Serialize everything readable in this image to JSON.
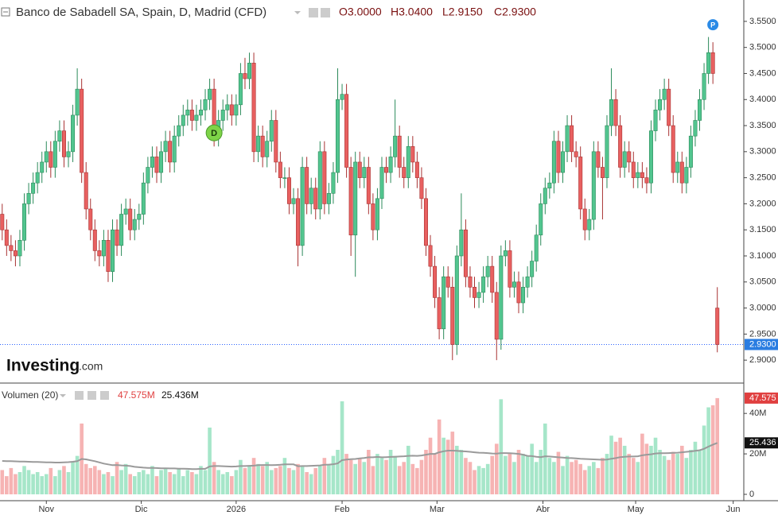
{
  "chart_data": {
    "type": "candlestick",
    "title": "Banco de Sabadell SA, Spain, D, Madrid (CFD)",
    "header_ohlc": [
      "O3.0000",
      "H3.0400",
      "L2.9150",
      "C2.9300"
    ],
    "logo": [
      "Investing",
      ".com"
    ],
    "up_color": "#52c58f",
    "down_color": "#e86060",
    "xlim": [
      -0.5,
      168
    ],
    "xticks": [
      {
        "value": 10,
        "label": "Nov"
      },
      {
        "value": 31.5,
        "label": "Dic"
      },
      {
        "value": 53,
        "label": "2026"
      },
      {
        "value": 77,
        "label": "Feb"
      },
      {
        "value": 98.5,
        "label": "Mar"
      },
      {
        "value": 122.5,
        "label": "Abr"
      },
      {
        "value": 143.5,
        "label": "May"
      },
      {
        "value": 165.6,
        "label": "Jun"
      }
    ],
    "ylim": [
      2.856,
      3.591
    ],
    "yticks": [
      {
        "value": 2.9,
        "label": "2.9000"
      },
      {
        "value": 2.95,
        "label": "2.9500"
      },
      {
        "value": 3.0,
        "label": "3.0000"
      },
      {
        "value": 3.05,
        "label": "3.0500"
      },
      {
        "value": 3.1,
        "label": "3.1000"
      },
      {
        "value": 3.15,
        "label": "3.1500"
      },
      {
        "value": 3.2,
        "label": "3.2000"
      },
      {
        "value": 3.25,
        "label": "3.2500"
      },
      {
        "value": 3.3,
        "label": "3.3000"
      },
      {
        "value": 3.35,
        "label": "3.3500"
      },
      {
        "value": 3.4,
        "label": "3.4000"
      },
      {
        "value": 3.45,
        "label": "3.4500"
      },
      {
        "value": 3.5,
        "label": "3.5000"
      },
      {
        "value": 3.55,
        "label": "3.5500"
      }
    ],
    "current_price": {
      "value": 2.93,
      "label": "2.9300"
    },
    "events": [
      {
        "label": "D",
        "index": 48
      },
      {
        "label": "P",
        "index": 161
      }
    ],
    "ohlc": [
      [
        3.18,
        3.2,
        3.13,
        3.15
      ],
      [
        3.15,
        3.17,
        3.1,
        3.12
      ],
      [
        3.12,
        3.14,
        3.09,
        3.11
      ],
      [
        3.11,
        3.13,
        3.08,
        3.1
      ],
      [
        3.1,
        3.15,
        3.08,
        3.13
      ],
      [
        3.13,
        3.22,
        3.11,
        3.2
      ],
      [
        3.2,
        3.24,
        3.18,
        3.22
      ],
      [
        3.22,
        3.26,
        3.2,
        3.24
      ],
      [
        3.24,
        3.28,
        3.22,
        3.26
      ],
      [
        3.26,
        3.3,
        3.24,
        3.28
      ],
      [
        3.28,
        3.32,
        3.26,
        3.3
      ],
      [
        3.3,
        3.32,
        3.25,
        3.27
      ],
      [
        3.27,
        3.34,
        3.25,
        3.32
      ],
      [
        3.32,
        3.36,
        3.3,
        3.34
      ],
      [
        3.34,
        3.36,
        3.27,
        3.29
      ],
      [
        3.29,
        3.32,
        3.27,
        3.3
      ],
      [
        3.3,
        3.39,
        3.28,
        3.37
      ],
      [
        3.37,
        3.46,
        3.35,
        3.42
      ],
      [
        3.42,
        3.44,
        3.24,
        3.26
      ],
      [
        3.26,
        3.28,
        3.17,
        3.19
      ],
      [
        3.19,
        3.21,
        3.13,
        3.15
      ],
      [
        3.15,
        3.17,
        3.09,
        3.11
      ],
      [
        3.11,
        3.13,
        3.08,
        3.1
      ],
      [
        3.1,
        3.15,
        3.08,
        3.13
      ],
      [
        3.13,
        3.15,
        3.05,
        3.07
      ],
      [
        3.07,
        3.17,
        3.05,
        3.15
      ],
      [
        3.15,
        3.17,
        3.1,
        3.12
      ],
      [
        3.12,
        3.2,
        3.1,
        3.18
      ],
      [
        3.18,
        3.21,
        3.16,
        3.19
      ],
      [
        3.19,
        3.21,
        3.13,
        3.15
      ],
      [
        3.15,
        3.19,
        3.13,
        3.17
      ],
      [
        3.17,
        3.2,
        3.15,
        3.18
      ],
      [
        3.18,
        3.26,
        3.16,
        3.24
      ],
      [
        3.24,
        3.29,
        3.22,
        3.27
      ],
      [
        3.27,
        3.31,
        3.25,
        3.29
      ],
      [
        3.29,
        3.31,
        3.24,
        3.26
      ],
      [
        3.26,
        3.32,
        3.24,
        3.3
      ],
      [
        3.3,
        3.34,
        3.28,
        3.32
      ],
      [
        3.32,
        3.34,
        3.26,
        3.28
      ],
      [
        3.28,
        3.35,
        3.26,
        3.33
      ],
      [
        3.33,
        3.37,
        3.31,
        3.35
      ],
      [
        3.35,
        3.39,
        3.33,
        3.37
      ],
      [
        3.37,
        3.4,
        3.35,
        3.38
      ],
      [
        3.38,
        3.4,
        3.34,
        3.36
      ],
      [
        3.36,
        3.39,
        3.34,
        3.37
      ],
      [
        3.37,
        3.4,
        3.35,
        3.38
      ],
      [
        3.38,
        3.42,
        3.36,
        3.4
      ],
      [
        3.4,
        3.44,
        3.38,
        3.42
      ],
      [
        3.42,
        3.44,
        3.31,
        3.33
      ],
      [
        3.33,
        3.38,
        3.31,
        3.36
      ],
      [
        3.36,
        3.4,
        3.34,
        3.38
      ],
      [
        3.38,
        3.41,
        3.36,
        3.39
      ],
      [
        3.39,
        3.41,
        3.35,
        3.37
      ],
      [
        3.37,
        3.41,
        3.35,
        3.39
      ],
      [
        3.39,
        3.47,
        3.37,
        3.45
      ],
      [
        3.45,
        3.48,
        3.42,
        3.44
      ],
      [
        3.44,
        3.49,
        3.42,
        3.47
      ],
      [
        3.47,
        3.49,
        3.28,
        3.3
      ],
      [
        3.3,
        3.35,
        3.28,
        3.33
      ],
      [
        3.33,
        3.35,
        3.27,
        3.29
      ],
      [
        3.29,
        3.34,
        3.27,
        3.32
      ],
      [
        3.32,
        3.38,
        3.3,
        3.36
      ],
      [
        3.36,
        3.38,
        3.26,
        3.28
      ],
      [
        3.28,
        3.3,
        3.23,
        3.25
      ],
      [
        3.25,
        3.27,
        3.23,
        3.25
      ],
      [
        3.25,
        3.27,
        3.18,
        3.2
      ],
      [
        3.2,
        3.23,
        3.18,
        3.21
      ],
      [
        3.21,
        3.23,
        3.08,
        3.12
      ],
      [
        3.12,
        3.29,
        3.1,
        3.27
      ],
      [
        3.27,
        3.29,
        3.18,
        3.2
      ],
      [
        3.2,
        3.25,
        3.18,
        3.23
      ],
      [
        3.23,
        3.25,
        3.17,
        3.19
      ],
      [
        3.19,
        3.32,
        3.17,
        3.3
      ],
      [
        3.3,
        3.32,
        3.18,
        3.2
      ],
      [
        3.2,
        3.24,
        3.18,
        3.22
      ],
      [
        3.22,
        3.28,
        3.2,
        3.26
      ],
      [
        3.26,
        3.46,
        3.24,
        3.4
      ],
      [
        3.4,
        3.43,
        3.38,
        3.41
      ],
      [
        3.41,
        3.43,
        3.25,
        3.27
      ],
      [
        3.27,
        3.29,
        3.1,
        3.14
      ],
      [
        3.14,
        3.3,
        3.06,
        3.28
      ],
      [
        3.28,
        3.3,
        3.23,
        3.25
      ],
      [
        3.25,
        3.29,
        3.23,
        3.27
      ],
      [
        3.27,
        3.29,
        3.18,
        3.2
      ],
      [
        3.2,
        3.22,
        3.13,
        3.15
      ],
      [
        3.15,
        3.23,
        3.13,
        3.21
      ],
      [
        3.21,
        3.29,
        3.19,
        3.27
      ],
      [
        3.27,
        3.29,
        3.24,
        3.26
      ],
      [
        3.26,
        3.31,
        3.24,
        3.29
      ],
      [
        3.29,
        3.4,
        3.27,
        3.33
      ],
      [
        3.33,
        3.35,
        3.25,
        3.27
      ],
      [
        3.27,
        3.29,
        3.23,
        3.25
      ],
      [
        3.25,
        3.33,
        3.23,
        3.31
      ],
      [
        3.31,
        3.33,
        3.26,
        3.28
      ],
      [
        3.28,
        3.3,
        3.23,
        3.25
      ],
      [
        3.25,
        3.27,
        3.19,
        3.21
      ],
      [
        3.21,
        3.23,
        3.1,
        3.12
      ],
      [
        3.12,
        3.14,
        3.06,
        3.08
      ],
      [
        3.08,
        3.1,
        3.0,
        3.02
      ],
      [
        3.02,
        3.04,
        2.94,
        2.96
      ],
      [
        2.96,
        3.08,
        2.94,
        3.06
      ],
      [
        3.06,
        3.08,
        3.02,
        3.04
      ],
      [
        3.04,
        3.06,
        2.9,
        2.93
      ],
      [
        2.93,
        3.12,
        2.91,
        3.1
      ],
      [
        3.1,
        3.22,
        3.08,
        3.15
      ],
      [
        3.15,
        3.17,
        3.04,
        3.06
      ],
      [
        3.06,
        3.08,
        3.02,
        3.04
      ],
      [
        3.04,
        3.06,
        3.0,
        3.02
      ],
      [
        3.02,
        3.05,
        3.0,
        3.03
      ],
      [
        3.03,
        3.08,
        3.01,
        3.06
      ],
      [
        3.06,
        3.1,
        3.04,
        3.08
      ],
      [
        3.08,
        3.1,
        3.01,
        3.03
      ],
      [
        3.03,
        3.05,
        2.9,
        2.94
      ],
      [
        2.94,
        3.12,
        2.92,
        3.1
      ],
      [
        3.1,
        3.13,
        3.08,
        3.11
      ],
      [
        3.11,
        3.13,
        3.02,
        3.04
      ],
      [
        3.04,
        3.07,
        3.02,
        3.05
      ],
      [
        3.05,
        3.07,
        2.99,
        3.01
      ],
      [
        3.01,
        3.06,
        2.99,
        3.04
      ],
      [
        3.04,
        3.08,
        3.02,
        3.06
      ],
      [
        3.06,
        3.11,
        3.04,
        3.09
      ],
      [
        3.09,
        3.16,
        3.07,
        3.14
      ],
      [
        3.14,
        3.22,
        3.12,
        3.2
      ],
      [
        3.2,
        3.25,
        3.18,
        3.23
      ],
      [
        3.23,
        3.26,
        3.21,
        3.24
      ],
      [
        3.24,
        3.34,
        3.22,
        3.32
      ],
      [
        3.32,
        3.34,
        3.24,
        3.26
      ],
      [
        3.26,
        3.32,
        3.24,
        3.3
      ],
      [
        3.3,
        3.37,
        3.28,
        3.35
      ],
      [
        3.35,
        3.37,
        3.28,
        3.3
      ],
      [
        3.3,
        3.32,
        3.27,
        3.29
      ],
      [
        3.29,
        3.31,
        3.17,
        3.19
      ],
      [
        3.19,
        3.21,
        3.13,
        3.15
      ],
      [
        3.15,
        3.19,
        3.13,
        3.17
      ],
      [
        3.17,
        3.32,
        3.15,
        3.3
      ],
      [
        3.3,
        3.32,
        3.25,
        3.27
      ],
      [
        3.27,
        3.29,
        3.17,
        3.25
      ],
      [
        3.25,
        3.37,
        3.23,
        3.35
      ],
      [
        3.35,
        3.46,
        3.33,
        3.4
      ],
      [
        3.4,
        3.42,
        3.33,
        3.35
      ],
      [
        3.35,
        3.37,
        3.25,
        3.27
      ],
      [
        3.27,
        3.32,
        3.25,
        3.3
      ],
      [
        3.3,
        3.32,
        3.26,
        3.28
      ],
      [
        3.28,
        3.3,
        3.23,
        3.25
      ],
      [
        3.25,
        3.28,
        3.23,
        3.26
      ],
      [
        3.26,
        3.28,
        3.23,
        3.25
      ],
      [
        3.25,
        3.27,
        3.22,
        3.24
      ],
      [
        3.24,
        3.36,
        3.22,
        3.34
      ],
      [
        3.34,
        3.4,
        3.32,
        3.38
      ],
      [
        3.38,
        3.42,
        3.36,
        3.4
      ],
      [
        3.4,
        3.44,
        3.38,
        3.42
      ],
      [
        3.42,
        3.44,
        3.33,
        3.35
      ],
      [
        3.35,
        3.37,
        3.24,
        3.26
      ],
      [
        3.26,
        3.3,
        3.24,
        3.28
      ],
      [
        3.28,
        3.3,
        3.22,
        3.24
      ],
      [
        3.24,
        3.29,
        3.22,
        3.27
      ],
      [
        3.27,
        3.35,
        3.25,
        3.33
      ],
      [
        3.33,
        3.38,
        3.31,
        3.36
      ],
      [
        3.36,
        3.42,
        3.34,
        3.4
      ],
      [
        3.4,
        3.47,
        3.38,
        3.45
      ],
      [
        3.45,
        3.52,
        3.43,
        3.49
      ],
      [
        3.49,
        3.51,
        3.43,
        3.45
      ],
      [
        3.0,
        3.04,
        2.915,
        2.93
      ]
    ],
    "volume_panel": {
      "name": "Volumen (20)",
      "legend_values": [
        {
          "value": 47.575,
          "label": "47.575M"
        },
        {
          "value": 25.436,
          "label": "25.436M"
        }
      ],
      "tags": [
        {
          "value": 47.575,
          "label": "47.575"
        },
        {
          "value": 25.436,
          "label": "25.436"
        }
      ],
      "up_color": "#a6e6c9",
      "down_color": "#f6b3b3",
      "ma_color": "#9a9a9a",
      "ylim": [
        0,
        55
      ],
      "yticks": [
        0,
        {
          "value": 20,
          "label": "20M"
        },
        {
          "value": 40,
          "label": "40M"
        }
      ],
      "values": [
        12,
        9,
        13,
        10,
        11,
        14,
        12,
        10,
        11,
        9,
        10,
        13,
        9,
        12,
        14,
        11,
        16,
        19,
        35,
        15,
        13,
        14,
        12,
        10,
        11,
        9,
        16,
        12,
        15,
        10,
        9,
        11,
        12,
        10,
        14,
        9,
        12,
        13,
        11,
        10,
        13,
        9,
        12,
        11,
        10,
        14,
        12,
        33,
        16,
        12,
        10,
        11,
        9,
        12,
        17,
        13,
        14,
        18,
        15,
        14,
        16,
        12,
        13,
        14,
        18,
        13,
        12,
        15,
        14,
        11,
        10,
        13,
        14,
        18,
        15,
        19,
        22,
        46,
        20,
        17,
        15,
        18,
        16,
        22,
        14,
        20,
        18,
        17,
        22,
        19,
        14,
        16,
        24,
        15,
        13,
        17,
        22,
        28,
        20,
        37,
        28,
        27,
        31,
        24,
        22,
        18,
        16,
        12,
        14,
        13,
        15,
        19,
        25,
        47,
        19,
        20,
        16,
        22,
        20,
        19,
        25,
        16,
        22,
        35,
        18,
        16,
        21,
        14,
        19,
        16,
        17,
        15,
        12,
        14,
        16,
        13,
        18,
        20,
        29,
        26,
        28,
        24,
        20,
        18,
        16,
        30,
        25,
        24,
        28,
        22,
        19,
        17,
        21,
        20,
        24,
        18,
        22,
        26,
        22,
        34,
        43,
        44,
        47.575
      ],
      "ma": [
        16.5,
        16.4,
        16.4,
        16.3,
        16.2,
        16.2,
        16.1,
        16.0,
        16.0,
        15.9,
        15.8,
        15.8,
        15.7,
        15.7,
        15.8,
        15.9,
        16.1,
        16.4,
        17.5,
        17.3,
        16.8,
        16.4,
        15.8,
        15.2,
        14.8,
        14.4,
        14.5,
        14.3,
        14.2,
        14.0,
        13.6,
        13.4,
        13.2,
        13.1,
        13.1,
        13.0,
        12.9,
        12.9,
        12.8,
        12.8,
        12.7,
        12.7,
        12.6,
        12.5,
        12.5,
        12.6,
        12.6,
        13.8,
        14.0,
        14.0,
        13.9,
        13.8,
        13.7,
        13.8,
        14.0,
        14.0,
        14.1,
        14.2,
        14.4,
        14.5,
        14.5,
        14.4,
        14.5,
        14.6,
        14.8,
        14.8,
        14.8,
        13.9,
        14.0,
        14.0,
        14.1,
        14.2,
        14.3,
        14.6,
        14.7,
        14.9,
        15.3,
        16.9,
        17.2,
        17.4,
        17.5,
        17.8,
        18.0,
        18.3,
        18.3,
        18.5,
        18.3,
        18.4,
        18.5,
        18.6,
        18.7,
        18.8,
        19.0,
        19.1,
        19.0,
        19.2,
        19.6,
        20.0,
        20.0,
        20.8,
        21.3,
        21.6,
        21.6,
        21.5,
        21.3,
        21.2,
        21.0,
        20.8,
        20.6,
        20.5,
        20.4,
        20.2,
        20.1,
        20.4,
        20.4,
        20.3,
        20.2,
        20.0,
        19.6,
        19.0,
        18.9,
        18.6,
        18.4,
        18.8,
        18.7,
        18.5,
        18.3,
        18.2,
        18.0,
        17.9,
        17.8,
        17.6,
        17.5,
        17.4,
        17.3,
        17.2,
        17.1,
        17.2,
        17.6,
        17.9,
        18.4,
        18.6,
        18.7,
        18.7,
        18.8,
        19.3,
        19.6,
        19.8,
        20.2,
        20.3,
        20.3,
        20.4,
        20.5,
        20.6,
        20.8,
        21.0,
        21.2,
        21.5,
        21.8,
        22.5,
        23.6,
        24.6,
        25.436
      ]
    }
  }
}
